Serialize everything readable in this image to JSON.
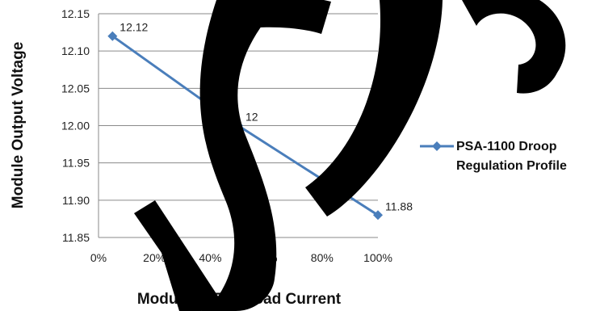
{
  "chart_data": {
    "type": "line",
    "xlabel": "Module % Full Load Current",
    "ylabel": "Module Output Voltage",
    "x_ticks": [
      "0%",
      "20%",
      "40%",
      "60%",
      "80%",
      "100%"
    ],
    "y_ticks": [
      "11.85",
      "11.90",
      "11.95",
      "12.00",
      "12.05",
      "12.10",
      "12.15"
    ],
    "xlim": [
      0,
      100
    ],
    "ylim": [
      11.85,
      12.15
    ],
    "grid": true,
    "legend_position": "right",
    "series": [
      {
        "name": "PSA-1100 Droop Regulation Profile",
        "legend_lines": [
          "PSA-1100 Droop",
          "Regulation Profile"
        ],
        "color": "#4a7ebb",
        "points": [
          {
            "x": 5,
            "y": 12.12,
            "label": "12.12"
          },
          {
            "x": 50,
            "y": 12.0,
            "label": "12"
          },
          {
            "x": 100,
            "y": 11.88,
            "label": "11.88"
          }
        ]
      }
    ]
  }
}
